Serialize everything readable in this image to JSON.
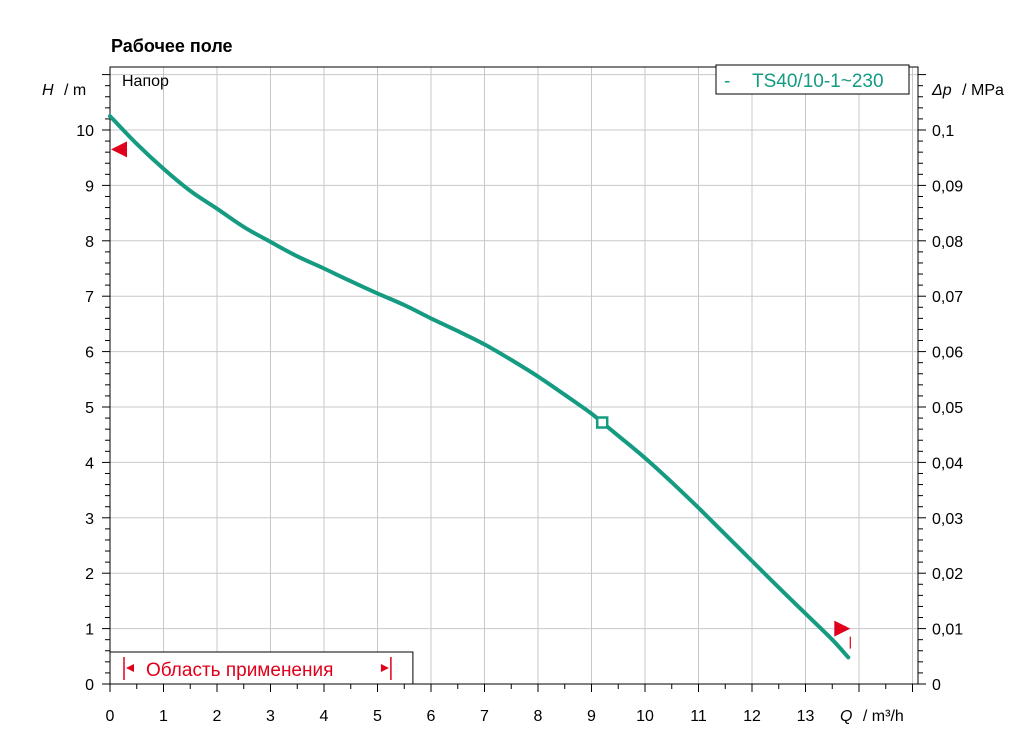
{
  "chart_data": {
    "type": "line",
    "title": "Рабочее поле",
    "panel_label": "Напор",
    "y_axis_left": {
      "symbol": "H",
      "unit": "/ m",
      "range": [
        0,
        11
      ],
      "ticks": [
        "0",
        "1",
        "2",
        "3",
        "4",
        "5",
        "6",
        "7",
        "8",
        "9",
        "10"
      ]
    },
    "y_axis_right": {
      "symbol": "Δp",
      "unit": "/ MPa",
      "range": [
        0,
        0.11
      ],
      "ticks": [
        "0",
        "0,01",
        "0,02",
        "0,03",
        "0,04",
        "0,05",
        "0,06",
        "0,07",
        "0,08",
        "0,09",
        "0,1"
      ]
    },
    "x_axis": {
      "symbol": "Q",
      "unit": "/ m³/h",
      "range": [
        0,
        15
      ],
      "ticks": [
        "0",
        "1",
        "2",
        "3",
        "4",
        "5",
        "6",
        "7",
        "8",
        "9",
        "10",
        "11",
        "12",
        "13"
      ]
    },
    "grid": true,
    "legend": {
      "placement": "top-right",
      "marker": "-",
      "entries": [
        "TS40/10-1~230"
      ]
    },
    "series": [
      {
        "name": "TS40/10-1~230",
        "color": "#149b82",
        "x": [
          0,
          0.5,
          1,
          1.5,
          2,
          2.5,
          3,
          3.5,
          4,
          4.5,
          5,
          5.5,
          6,
          6.5,
          7,
          7.5,
          8,
          8.5,
          9,
          9.2,
          9.5,
          10,
          10.5,
          11,
          11.5,
          12,
          12.5,
          13,
          13.5,
          13.8
        ],
        "y": [
          10.25,
          9.75,
          9.3,
          8.9,
          8.58,
          8.25,
          7.98,
          7.72,
          7.5,
          7.27,
          7.05,
          6.84,
          6.6,
          6.37,
          6.13,
          5.85,
          5.55,
          5.22,
          4.88,
          4.72,
          4.48,
          4.08,
          3.64,
          3.18,
          2.7,
          2.22,
          1.74,
          1.27,
          0.8,
          0.48
        ]
      }
    ],
    "duty_point": {
      "x": 9.2,
      "y": 4.72
    },
    "range_markers": [
      {
        "x": 0,
        "y": 9.65,
        "direction": "left"
      },
      {
        "x": 13.8,
        "y": 1.0,
        "direction": "right"
      }
    ],
    "application_range": {
      "label": "Область применения",
      "from": 0,
      "to": 5.4
    },
    "colors": {
      "curve": "#149b82",
      "marker": "#e0001b",
      "grid": "#c8c8c8"
    }
  }
}
